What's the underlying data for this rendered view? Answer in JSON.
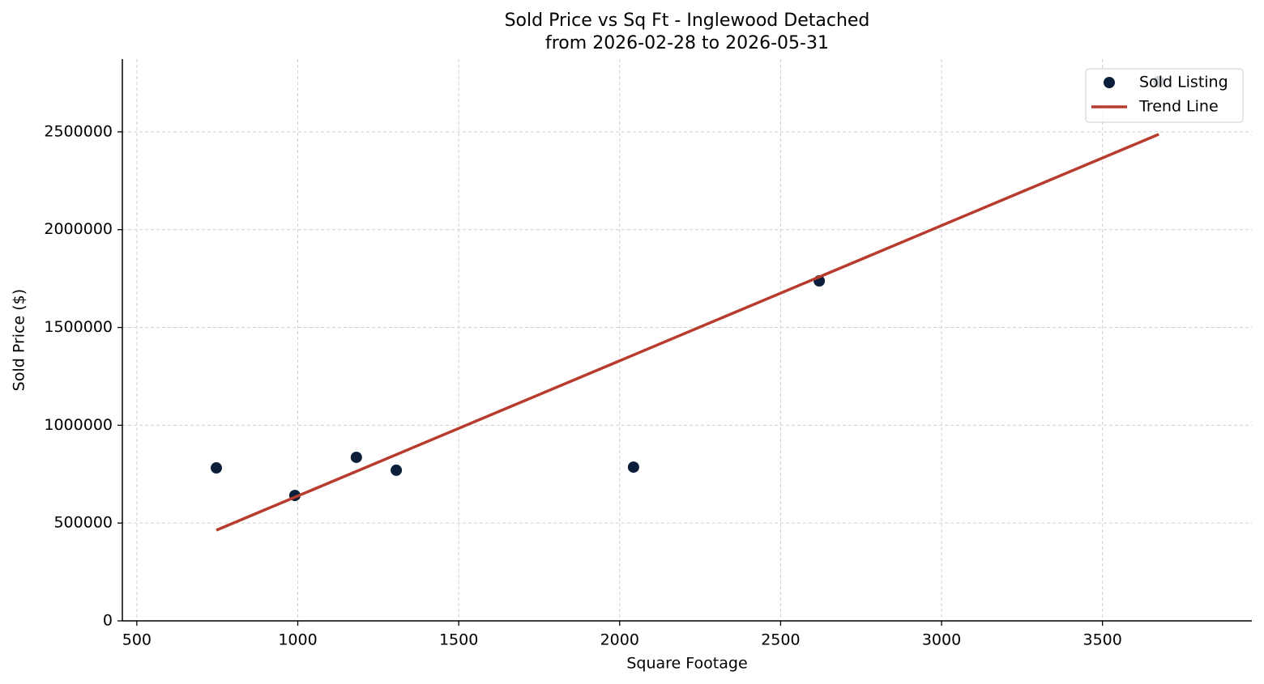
{
  "chart_data": {
    "type": "scatter",
    "title": "Sold Price vs Sq Ft - Inglewood Detached",
    "subtitle": "from 2026-02-28 to 2026-05-31",
    "x_label": "Square Footage",
    "y_label": "Sold Price ($)",
    "series": [
      {
        "name": "Sold Listing",
        "type": "scatter",
        "color": "#0b1f3a",
        "x": [
          747,
          991,
          1182,
          1306,
          2043,
          2620,
          3675
        ],
        "values": [
          782000,
          641000,
          836000,
          770000,
          786000,
          1738000,
          2757000
        ]
      },
      {
        "name": "Trend Line",
        "type": "line",
        "color": "#b83c2e",
        "x": [
          747,
          3675
        ],
        "values": [
          463600,
          2487600
        ]
      }
    ],
    "xlim": [
      455,
      3964
    ],
    "ylim": [
      0,
      2872000
    ],
    "xticks": [
      500,
      1000,
      1500,
      2000,
      2500,
      3000,
      3500
    ],
    "yticks": [
      0,
      500000,
      1000000,
      1500000,
      2000000,
      2500000
    ],
    "grid": true,
    "legend": "upper right"
  }
}
